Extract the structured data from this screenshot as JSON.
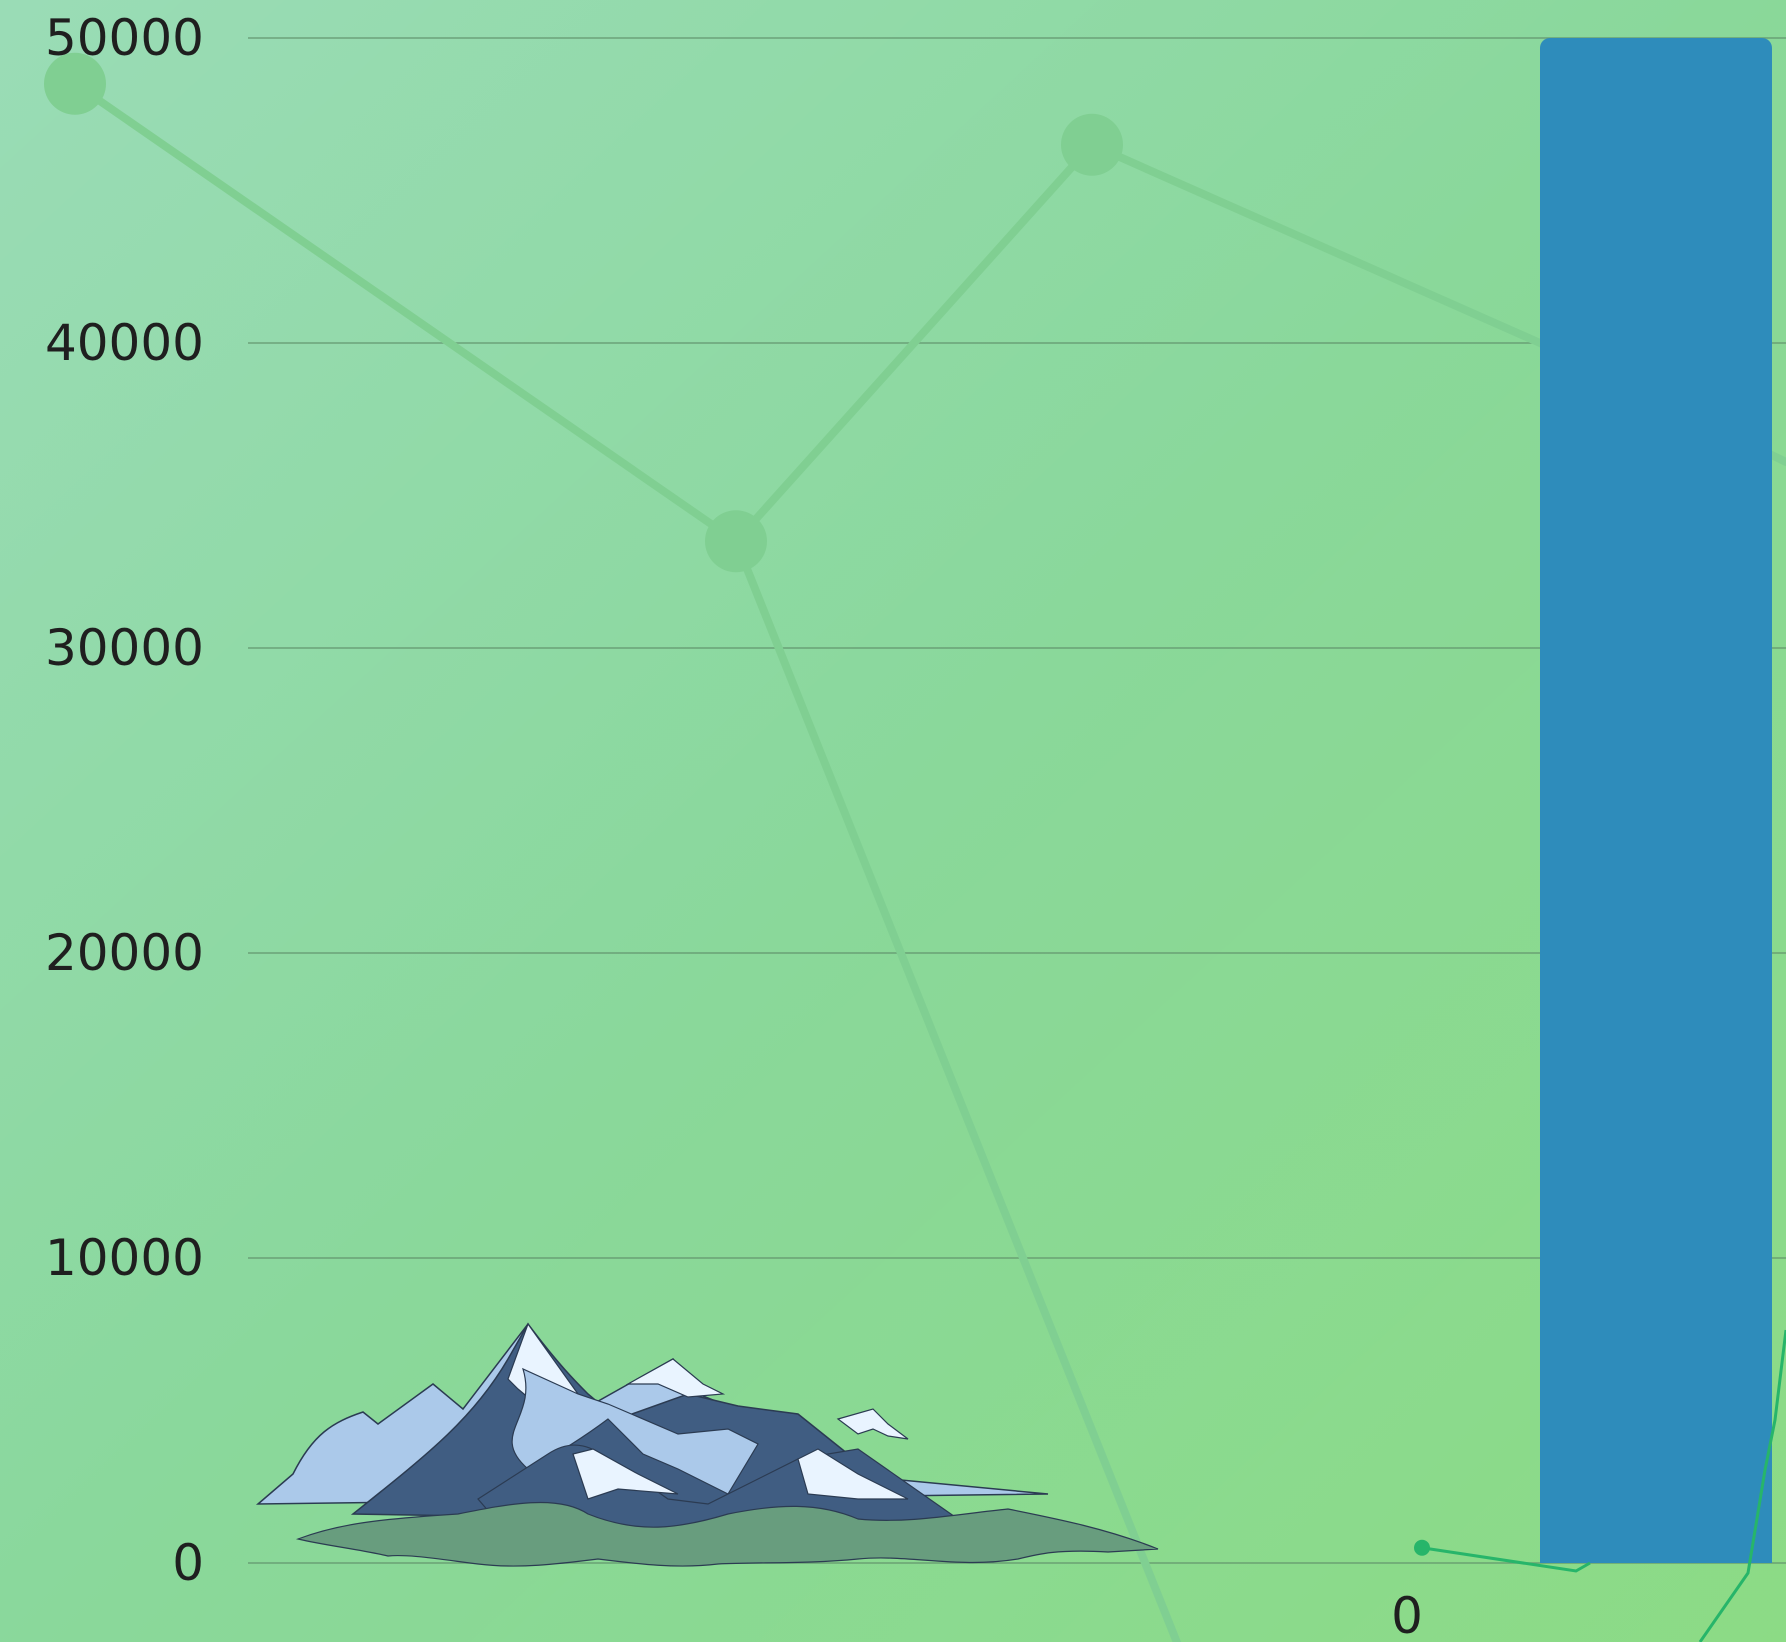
{
  "chart_data": {
    "type": "bar",
    "title": "",
    "xlabel": "",
    "ylabel": "",
    "ylim": [
      0,
      50000
    ],
    "yticks": [
      0,
      10000,
      20000,
      30000,
      40000,
      50000
    ],
    "xticks_visible": [
      "0"
    ],
    "grid": true,
    "legend": "none",
    "bars": [
      {
        "x": 1,
        "value": 50000
      }
    ],
    "background_trend_line": {
      "opacity": "faint",
      "values": [
        48500,
        33500,
        46500,
        40000
      ]
    },
    "small_line_values": [
      500,
      0
    ],
    "colors": {
      "bar": "#2e8cbb",
      "grid": "#5f8f6a",
      "background_line": "#80cf92",
      "small_line": "#27b56a"
    },
    "decoration": {
      "icon": "mountain-icon"
    }
  }
}
